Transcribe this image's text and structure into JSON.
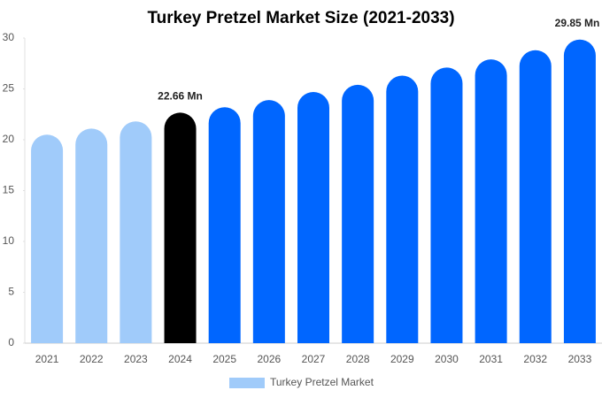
{
  "chart_data": {
    "type": "bar",
    "title": "Turkey Pretzel Market Size (2021-2033)",
    "categories": [
      "2021",
      "2022",
      "2023",
      "2024",
      "2025",
      "2026",
      "2027",
      "2028",
      "2029",
      "2030",
      "2031",
      "2032",
      "2033"
    ],
    "series": [
      {
        "name": "Turkey Pretzel Market",
        "color": "#a0cbfa",
        "values": [
          20.5,
          21.1,
          21.8,
          22.66,
          23.2,
          23.9,
          24.7,
          25.4,
          26.3,
          27.1,
          27.9,
          28.8,
          29.85
        ],
        "colors": [
          "#a0cbfa",
          "#a0cbfa",
          "#a0cbfa",
          "#000000",
          "#0066ff",
          "#0066ff",
          "#0066ff",
          "#0066ff",
          "#0066ff",
          "#0066ff",
          "#0066ff",
          "#0066ff",
          "#0066ff"
        ],
        "value_labels": [
          null,
          null,
          null,
          "22.66 Mn",
          null,
          null,
          null,
          null,
          null,
          null,
          null,
          null,
          "29.85 Mn"
        ]
      }
    ],
    "ylim": [
      0,
      30
    ],
    "yticks": [
      0,
      5,
      10,
      15,
      20,
      25,
      30
    ],
    "grid": false
  }
}
